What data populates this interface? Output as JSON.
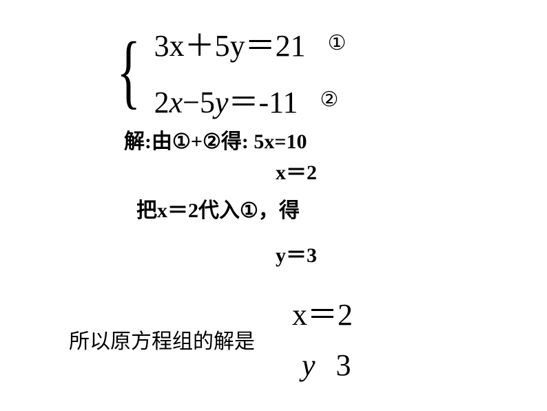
{
  "system": {
    "eq1_text": "3x＋5y＝21",
    "eq1_marker": "①",
    "eq2_lhs_coef1": "2",
    "eq2_var1": "x",
    "eq2_op": "−",
    "eq2_coef2": "5",
    "eq2_var2": "y",
    "eq2_eq": "＝",
    "eq2_rhs": "-11",
    "eq2_marker": "②"
  },
  "steps": {
    "step1_prefix": "解:由",
    "step1_m1": "①",
    "step1_plus": "+",
    "step1_m2": "②",
    "step1_suffix": "得: 5x=10",
    "step2": "x＝2",
    "step3_prefix": "把",
    "step3_val": "x＝2",
    "step3_mid": "代入",
    "step3_marker": "①",
    "step3_suffix": "，得",
    "step4": "y＝3",
    "step5": "所以原方程组的解是"
  },
  "solution": {
    "sol1_placeholder": "",
    "sol1": "x＝2",
    "sol2_var": "y",
    "sol2_val": "3"
  },
  "colors": {
    "text": "#000000",
    "background": "#ffffff"
  },
  "fontsize": {
    "equation": 44,
    "step": 30,
    "marker": 30
  }
}
